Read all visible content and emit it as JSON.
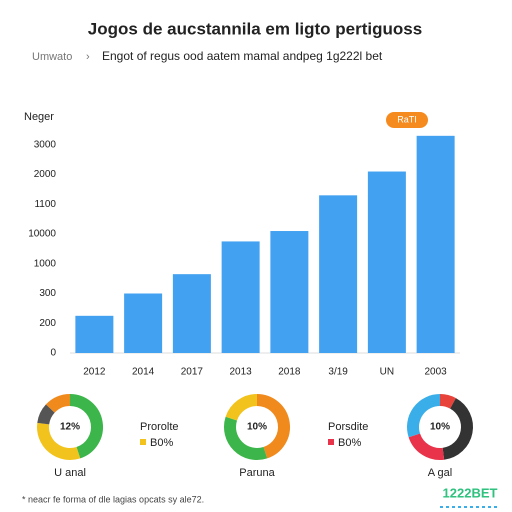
{
  "header": {
    "title": "Jogos de aucstannila em ligto pertiguoss",
    "breadcrumb": [
      "Umwato",
      "Engot of regus ood aatem mamal andpeg 1g222l bet"
    ]
  },
  "badge": "RaTI",
  "chart_data": [
    {
      "type": "bar",
      "y_label": "Neger",
      "categories": [
        "2012",
        "2014",
        "2017",
        "2013",
        "2018",
        "3/19",
        "UN",
        "2003"
      ],
      "values": [
        1.25,
        2.0,
        2.65,
        3.75,
        4.1,
        5.3,
        6.1,
        7.3
      ],
      "color": "#42a1f0",
      "ylim": [
        0,
        8
      ],
      "yticks": [
        {
          "value": 0,
          "label": "0"
        },
        {
          "value": 1,
          "label": "200"
        },
        {
          "value": 2,
          "label": "300"
        },
        {
          "value": 3,
          "label": "1000"
        },
        {
          "value": 4,
          "label": "10000"
        },
        {
          "value": 5,
          "label": "1100"
        },
        {
          "value": 6,
          "label": "2000"
        },
        {
          "value": 7,
          "label": "3000"
        }
      ]
    },
    {
      "type": "pie",
      "center_label": "12%",
      "label": "U anal",
      "values": [
        45,
        32,
        10,
        13
      ],
      "colors": [
        "#3cb54a",
        "#f2c31c",
        "#555555",
        "#f08a1c"
      ]
    },
    {
      "type": "pie",
      "center_label": "10%",
      "label": "Paruna",
      "values": [
        45,
        35,
        20
      ],
      "colors": [
        "#f08a1c",
        "#3cb54a",
        "#f2c31c"
      ]
    },
    {
      "type": "pie",
      "center_label": "10%",
      "label": "A gal",
      "values": [
        8,
        40,
        22,
        30
      ],
      "colors": [
        "#e8433a",
        "#333333",
        "#e8334a",
        "#3aaee8"
      ]
    }
  ],
  "legends": [
    {
      "name": "Prorolte",
      "value": "B0%",
      "color": "#f2c31c"
    },
    {
      "name": "Porsdite",
      "value": "B0%",
      "color": "#e8334a"
    }
  ],
  "footer": {
    "note": "* neacr fe forma of dle lagias opcats sy ale72.",
    "logo": "1222BET"
  }
}
